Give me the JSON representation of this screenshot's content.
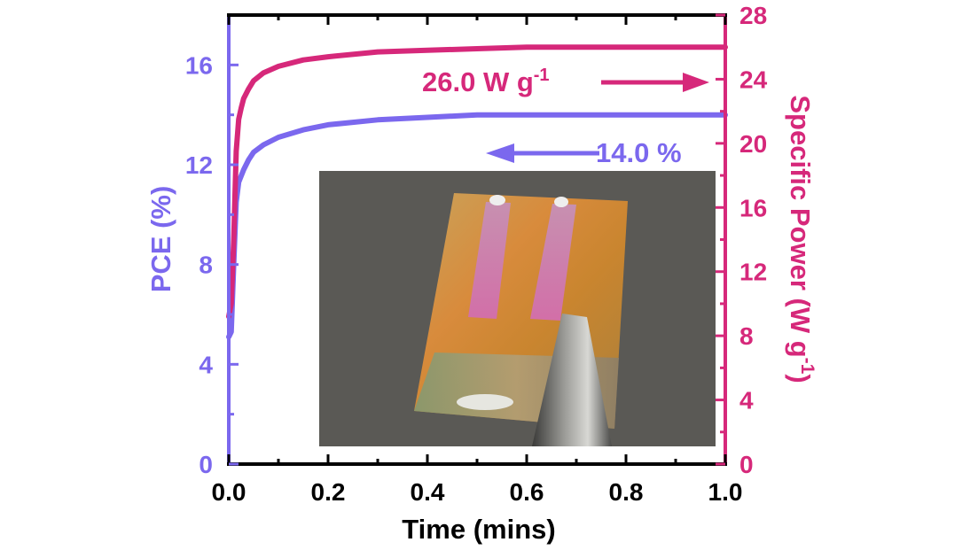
{
  "chart_data": {
    "type": "line",
    "xlabel": "Time (mins)",
    "ylabel_left": "PCE (%)",
    "ylabel_right_main": "Specific Power (W g",
    "ylabel_right_sup": "-1",
    "ylabel_right_close": ")",
    "xlim": [
      0,
      1.0
    ],
    "ylim_left": [
      0,
      18
    ],
    "ylim_right": [
      0,
      28
    ],
    "x_ticks": [
      "0.0",
      "0.2",
      "0.4",
      "0.6",
      "0.8",
      "1.0"
    ],
    "x_tick_values": [
      0,
      0.2,
      0.4,
      0.6,
      0.8,
      1.0
    ],
    "y_left_ticks": [
      "0",
      "4",
      "8",
      "12",
      "16"
    ],
    "y_left_tick_values": [
      0,
      4,
      8,
      12,
      16
    ],
    "y_right_ticks": [
      "0",
      "4",
      "8",
      "12",
      "16",
      "20",
      "24",
      "28"
    ],
    "y_right_tick_values": [
      0,
      4,
      8,
      12,
      16,
      20,
      24,
      28
    ],
    "colors": {
      "pce": "#7b68ee",
      "power": "#d6287a",
      "axis": "#000000"
    },
    "series": [
      {
        "axis": "left",
        "color": "#7b68ee",
        "x": [
          0.0,
          0.005,
          0.01,
          0.015,
          0.02,
          0.03,
          0.04,
          0.05,
          0.07,
          0.1,
          0.15,
          0.2,
          0.3,
          0.4,
          0.5,
          0.6,
          0.7,
          0.8,
          0.9,
          1.0
        ],
        "y": [
          5.1,
          5.3,
          8.0,
          10.5,
          11.3,
          11.8,
          12.2,
          12.5,
          12.8,
          13.1,
          13.4,
          13.6,
          13.8,
          13.9,
          14.0,
          14.0,
          14.0,
          14.0,
          14.0,
          14.0
        ]
      },
      {
        "axis": "right",
        "color": "#d6287a",
        "x": [
          0.0,
          0.005,
          0.01,
          0.015,
          0.02,
          0.025,
          0.03,
          0.04,
          0.05,
          0.07,
          0.1,
          0.15,
          0.2,
          0.3,
          0.4,
          0.5,
          0.6,
          0.7,
          0.8,
          0.9,
          1.0
        ],
        "y": [
          9.2,
          10.0,
          14.0,
          19.5,
          21.5,
          22.2,
          22.8,
          23.4,
          23.9,
          24.4,
          24.8,
          25.2,
          25.4,
          25.7,
          25.8,
          25.9,
          26.0,
          26.0,
          26.0,
          26.0,
          26.0
        ]
      }
    ],
    "annotations": {
      "power_label": "26.0 W g",
      "power_label_sup": "-1",
      "pce_label": "14.0 %"
    }
  },
  "inset": {
    "description_icon": "device-photo",
    "background": "#5a5955"
  }
}
